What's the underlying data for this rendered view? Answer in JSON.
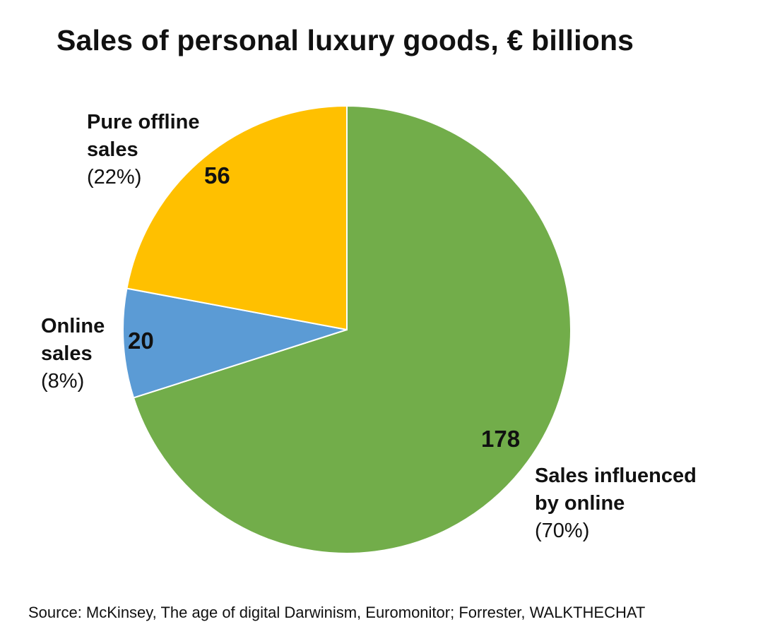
{
  "chart_data": {
    "type": "pie",
    "title": "Sales of personal luxury goods, € billions",
    "slices": [
      {
        "name_line1": "Sales influenced",
        "name_line2": "by online",
        "value": 178,
        "value_label": "178",
        "percent_label": "(70%)",
        "color": "#72AD4A"
      },
      {
        "name_line1": "Online",
        "name_line2": "sales",
        "value": 20,
        "value_label": "20",
        "percent_label": "(8%)",
        "color": "#5B9BD5"
      },
      {
        "name_line1": "Pure offline",
        "name_line2": "sales",
        "value": 56,
        "value_label": "56",
        "percent_label": "(22%)",
        "color": "#FFC000"
      }
    ],
    "start_angle": "12 o'clock",
    "direction": "clockwise",
    "source": "Source: McKinsey, The age of digital Darwinism, Euromonitor; Forrester, WALKTHECHAT"
  }
}
